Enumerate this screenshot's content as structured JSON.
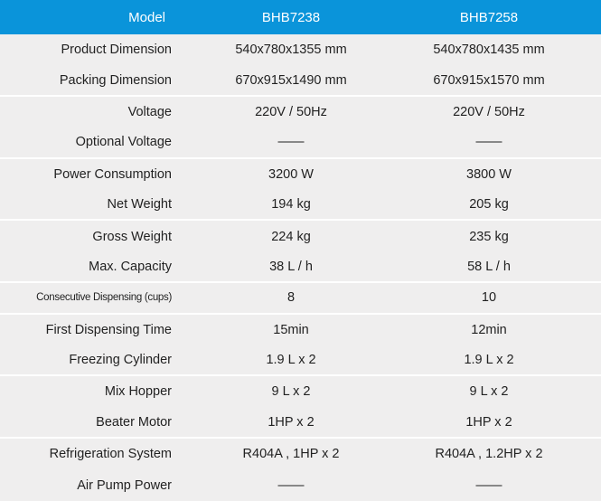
{
  "header": {
    "label": "Model",
    "models": [
      "BHB7238",
      "BHB7258"
    ]
  },
  "colors": {
    "header_bg": "#0a94da",
    "body_bg": "#efeeee"
  },
  "rows": [
    {
      "label": "Product Dimension",
      "a": "540x780x1355 mm",
      "b": "540x780x1435 mm"
    },
    {
      "label": "Packing Dimension",
      "a": "670x915x1490 mm",
      "b": "670x915x1570 mm"
    },
    {
      "label": "Voltage",
      "a": "220V / 50Hz",
      "b": "220V / 50Hz"
    },
    {
      "label": "Optional Voltage",
      "a": "——",
      "b": "——"
    },
    {
      "label": "Power Consumption",
      "a": "3200 W",
      "b": "3800 W"
    },
    {
      "label": "Net Weight",
      "a": "194 kg",
      "b": "205 kg"
    },
    {
      "label": "Gross Weight",
      "a": "224 kg",
      "b": "235 kg"
    },
    {
      "label": "Max. Capacity",
      "a": "38 L / h",
      "b": "58 L / h"
    },
    {
      "label": "Consecutive Dispensing (cups)",
      "a": "8",
      "b": "10"
    },
    {
      "label": "First Dispensing Time",
      "a": "15min",
      "b": "12min"
    },
    {
      "label": "Freezing Cylinder",
      "a": "1.9 L x 2",
      "b": "1.9 L x 2"
    },
    {
      "label": "Mix Hopper",
      "a": "9 L x 2",
      "b": "9 L x 2"
    },
    {
      "label": "Beater Motor",
      "a": "1HP x 2",
      "b": "1HP x 2"
    },
    {
      "label": "Refrigeration System",
      "a": "R404A , 1HP x 2",
      "b": "R404A , 1.2HP x 2"
    },
    {
      "label": "Air Pump Power",
      "a": "——",
      "b": "——"
    }
  ]
}
